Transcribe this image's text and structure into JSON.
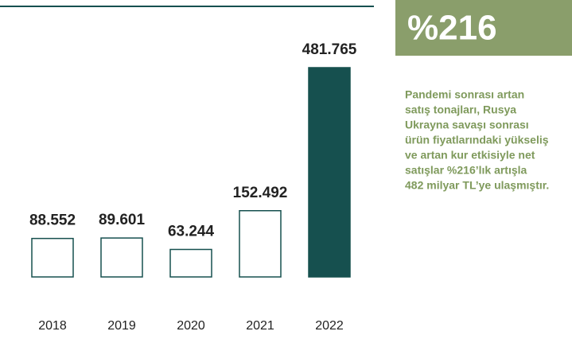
{
  "chart_data": {
    "type": "bar",
    "categories": [
      "2018",
      "2019",
      "2020",
      "2021",
      "2022"
    ],
    "values": [
      88552,
      89601,
      63244,
      152492,
      481765
    ],
    "value_labels": [
      "88.552",
      "89.601",
      "63.244",
      "152.492",
      "481.765"
    ],
    "colors": [
      "#ffffff",
      "#ffffff",
      "#ffffff",
      "#ffffff",
      "#16504f"
    ],
    "edge_color": "#16504f",
    "highlight": {
      "text": "%216",
      "color": "#8a9e6b"
    },
    "annotation_lines": [
      "Pandemi sonrası artan",
      "satış tonajları, Rusya",
      "Ukrayna savaşı sonrası",
      "ürün fiyatlarındaki yükseliş",
      "ve artan kur etkisiyle net",
      "satışlar %216’lık artışla",
      "482 milyar TL’ye ulaşmıştır."
    ],
    "annotation_color": "#7f9a5c"
  }
}
